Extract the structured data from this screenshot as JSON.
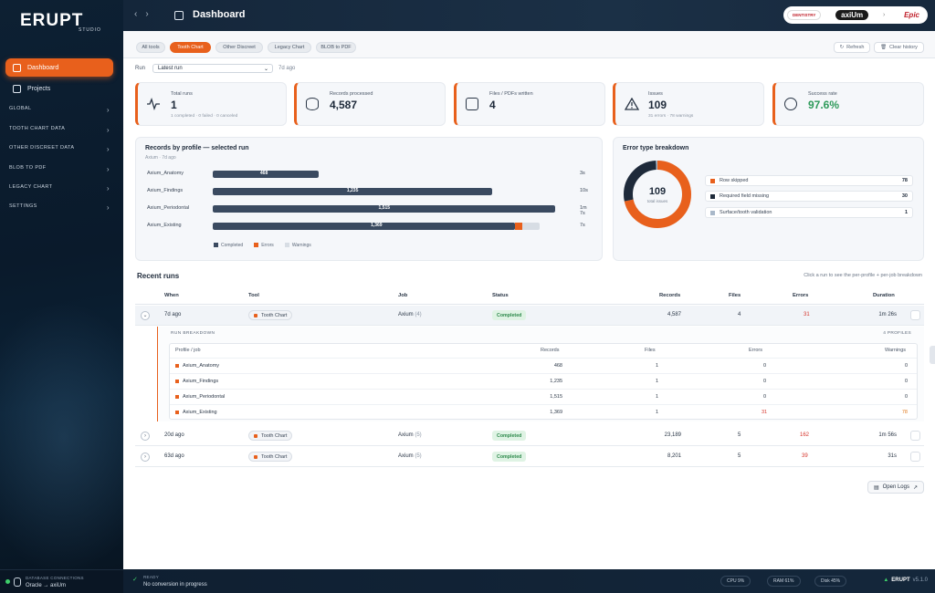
{
  "app": {
    "logo": "ERUPT",
    "logo_sub": "STUDIO"
  },
  "sidebar": {
    "items": [
      {
        "label": "Dashboard",
        "active": true
      },
      {
        "label": "Projects",
        "active": false
      }
    ],
    "sections": [
      "GLOBAL",
      "TOOTH CHART DATA",
      "OTHER DISCREET DATA",
      "BLOB TO PDF",
      "LEGACY CHART",
      "SETTINGS"
    ],
    "footer": {
      "label": "DATABASE CONNECTIONS",
      "value": "Oracle → axiUm"
    }
  },
  "header": {
    "title": "Dashboard",
    "brands": [
      "DENTISTRY",
      "axiUm",
      "Epic"
    ]
  },
  "tabs": [
    "All tools",
    "Tooth Chart",
    "Other Discreet",
    "Legacy Chart",
    "BLOB to PDF"
  ],
  "active_tab": "Tooth Chart",
  "toolbar": {
    "refresh": "Refresh",
    "clear_history": "Clear history"
  },
  "run": {
    "label": "Run",
    "selected": "Latest run",
    "ago": "7d ago"
  },
  "kpis": [
    {
      "label": "Total runs",
      "value": "1",
      "sub": "1 completed · 0 failed · 0 canceled"
    },
    {
      "label": "Records processed",
      "value": "4,587",
      "sub": ""
    },
    {
      "label": "Files / PDFs written",
      "value": "4",
      "sub": ""
    },
    {
      "label": "Issues",
      "value": "109",
      "sub": "31 errors · 78 warnings"
    },
    {
      "label": "Success rate",
      "value": "97.6%",
      "sub": ""
    }
  ],
  "records_card": {
    "title": "Records by profile — selected run",
    "sub": "Axium · 7d ago",
    "rows": [
      {
        "label": "Axium_Anatomy",
        "value": "468",
        "duration": "3s"
      },
      {
        "label": "Axium_Findings",
        "value": "1,235",
        "duration": "10s"
      },
      {
        "label": "Axium_Periodontal",
        "value": "1,515",
        "duration": "1m 7s"
      },
      {
        "label": "Axium_Existing",
        "value": "1,369",
        "duration": "7s"
      }
    ],
    "legend": [
      "Completed",
      "Errors",
      "Warnings"
    ]
  },
  "chart_data": {
    "type": "bar",
    "categories": [
      "Axium_Anatomy",
      "Axium_Findings",
      "Axium_Periodontal",
      "Axium_Existing"
    ],
    "series": [
      {
        "name": "Completed",
        "values": [
          468,
          1235,
          1515,
          1338
        ]
      },
      {
        "name": "Errors",
        "values": [
          0,
          0,
          0,
          31
        ]
      },
      {
        "name": "Warnings",
        "values": [
          0,
          0,
          0,
          78
        ]
      }
    ]
  },
  "error_card": {
    "title": "Error type breakdown",
    "total": "109",
    "total_label": "total issues",
    "items": [
      {
        "label": "Row skipped",
        "count": "78",
        "color": "#e8601c"
      },
      {
        "label": "Required field missing",
        "count": "30",
        "color": "#1e2a3a"
      },
      {
        "label": "Surface/tooth validation",
        "count": "1",
        "color": "#a9b8c9"
      }
    ],
    "donut_values": [
      78,
      30,
      1
    ]
  },
  "recent": {
    "title": "Recent runs",
    "hint": "Click a run to see the per-profile + per-job breakdown",
    "columns": [
      "When",
      "Tool",
      "Job",
      "Status",
      "Records",
      "Files",
      "Errors",
      "Duration"
    ],
    "rows": [
      {
        "when": "7d ago",
        "tool": "Tooth Chart",
        "job": "Axium",
        "job_count": "(4)",
        "status": "Completed",
        "records": "4,587",
        "files": "4",
        "errors": "31",
        "duration": "1m 26s"
      },
      {
        "when": "20d ago",
        "tool": "Tooth Chart",
        "job": "Axium",
        "job_count": "(5)",
        "status": "Completed",
        "records": "23,189",
        "files": "5",
        "errors": "162",
        "duration": "1m 56s"
      },
      {
        "when": "63d ago",
        "tool": "Tooth Chart",
        "job": "Axium",
        "job_count": "(5)",
        "status": "Completed",
        "records": "8,201",
        "files": "5",
        "errors": "39",
        "duration": "31s"
      }
    ],
    "breakdown": {
      "heading": "RUN BREAKDOWN",
      "count": "4 PROFILES",
      "columns": [
        "Profile / job",
        "Records",
        "Files",
        "Errors",
        "Warnings"
      ],
      "rows": [
        {
          "profile": "Axium_Anatomy",
          "records": "468",
          "files": "1",
          "errors": "0",
          "warnings": "0"
        },
        {
          "profile": "Axium_Findings",
          "records": "1,235",
          "files": "1",
          "errors": "0",
          "warnings": "0"
        },
        {
          "profile": "Axium_Periodontal",
          "records": "1,515",
          "files": "1",
          "errors": "0",
          "warnings": "0"
        },
        {
          "profile": "Axium_Existing",
          "records": "1,369",
          "files": "1",
          "errors": "31",
          "warnings": "78"
        }
      ]
    }
  },
  "open_logs": "Open Logs",
  "status": {
    "ready_label": "READY",
    "ready_value": "No conversion in progress",
    "cpu": "CPU 9%",
    "ram": "RAM 61%",
    "disk": "Disk 45%",
    "brand": "ERUPT",
    "version": "v5.1.0"
  }
}
